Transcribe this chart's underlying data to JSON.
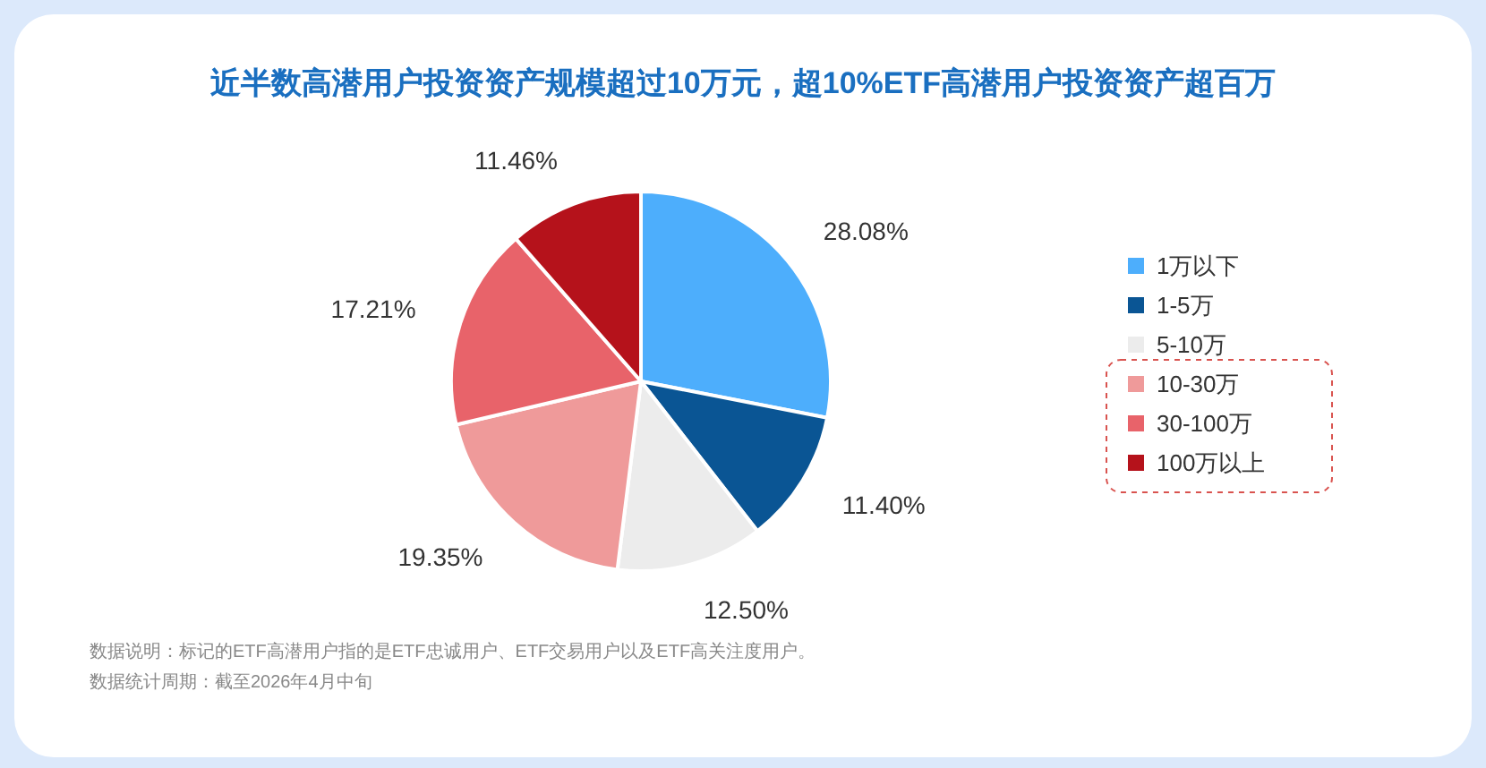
{
  "chart_data": {
    "type": "pie",
    "title": "近半数高潜用户投资资产规模超过10万元，超10%ETF高潜用户投资资产超百万",
    "categories": [
      "1万以下",
      "1-5万",
      "5-10万",
      "10-30万",
      "30-100万",
      "100万以上"
    ],
    "values": [
      28.08,
      11.4,
      12.5,
      19.35,
      17.21,
      11.46
    ],
    "value_labels": [
      "28.08%",
      "11.40%",
      "12.50%",
      "19.35%",
      "17.21%",
      "11.46%"
    ],
    "colors": [
      "#4daefc",
      "#0a5594",
      "#ececec",
      "#ef9a9a",
      "#e8636a",
      "#b5121b"
    ],
    "legend": "right",
    "annotations": [
      "数据说明：标记的ETF高潜用户指的是ETF忠诚用户、ETF交易用户以及ETF高关注度用户。",
      "数据统计周期：截至2026年4月中旬"
    ]
  }
}
